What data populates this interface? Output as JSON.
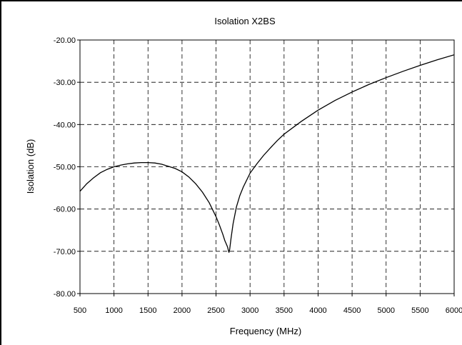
{
  "chart_data": {
    "type": "line",
    "title": "Isolation X2BS",
    "xlabel": "Frequency (MHz)",
    "ylabel": "Isolation (dB)",
    "xlim": [
      500,
      6000
    ],
    "ylim": [
      -80,
      -20
    ],
    "x_ticks": [
      500,
      1000,
      1500,
      2000,
      2500,
      3000,
      3500,
      4000,
      4500,
      5000,
      5500,
      6000
    ],
    "x_tick_labels": [
      "500",
      "1000",
      "1500",
      "2000",
      "2500",
      "3000",
      "3500",
      "4000",
      "4500",
      "5000",
      "5500",
      "6000"
    ],
    "y_ticks": [
      -20,
      -30,
      -40,
      -50,
      -60,
      -70,
      -80
    ],
    "y_tick_labels": [
      "-20.00",
      "-30.00",
      "-40.00",
      "-50.00",
      "-60.00",
      "-70.00",
      "-80.00"
    ],
    "grid": true,
    "grid_style": "dashed",
    "legend": "none",
    "colors": {
      "line": "#000000",
      "grid": "#000000",
      "background": "#ffffff"
    },
    "series": [
      {
        "x": [
          500,
          600,
          700,
          800,
          900,
          1000,
          1100,
          1200,
          1300,
          1400,
          1500,
          1600,
          1700,
          1800,
          1900,
          2000,
          2100,
          2200,
          2300,
          2400,
          2500,
          2550,
          2600,
          2630,
          2650,
          2670,
          2690,
          2700,
          2720,
          2750,
          2800,
          2850,
          2900,
          3000,
          3100,
          3200,
          3300,
          3400,
          3500,
          3750,
          4000,
          4250,
          4500,
          4750,
          5000,
          5250,
          5500,
          5750,
          6000
        ],
        "y": [
          -55.8,
          -54.0,
          -52.6,
          -51.4,
          -50.6,
          -50.0,
          -49.6,
          -49.3,
          -49.1,
          -49.0,
          -49.0,
          -49.1,
          -49.4,
          -49.9,
          -50.4,
          -51.2,
          -52.4,
          -54.0,
          -56.0,
          -58.5,
          -61.8,
          -63.8,
          -66.0,
          -67.5,
          -68.2,
          -69.0,
          -70.3,
          -69.6,
          -67.0,
          -63.5,
          -59.5,
          -56.8,
          -54.8,
          -51.5,
          -49.3,
          -47.3,
          -45.5,
          -43.8,
          -42.3,
          -39.3,
          -36.6,
          -34.3,
          -32.3,
          -30.5,
          -28.9,
          -27.4,
          -26.0,
          -24.7,
          -23.5
        ]
      }
    ]
  }
}
